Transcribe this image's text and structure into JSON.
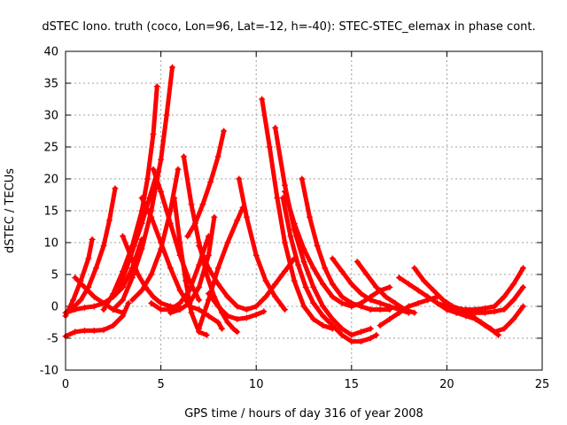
{
  "chart_data": {
    "type": "scatter",
    "title": "dSTEC Iono. truth (coco, Lon=96, Lat=-12, h=-40): STEC-STEC_elemax in phase cont.",
    "xlabel": "GPS time / hours of day 316 of year 2008",
    "ylabel": "dSTEC  / TECUs",
    "xlim": [
      0,
      25
    ],
    "ylim": [
      -10,
      40
    ],
    "xticks": [
      0,
      5,
      10,
      15,
      20,
      25
    ],
    "yticks": [
      -10,
      -5,
      0,
      5,
      10,
      15,
      20,
      25,
      30,
      35,
      40
    ],
    "grid": true,
    "marker": "+",
    "color": "#ff0000",
    "series": [
      {
        "x": [
          0,
          0.5,
          1.0,
          1.5,
          2.0,
          2.5,
          3.0,
          3.3
        ],
        "y": [
          -4.7,
          -4.0,
          -3.8,
          -3.8,
          -3.7,
          -3.0,
          -1.5,
          0.5
        ]
      },
      {
        "x": [
          0,
          0.4,
          0.8,
          1.2,
          1.4
        ],
        "y": [
          -1.5,
          1.0,
          4.0,
          7.5,
          10.5
        ]
      },
      {
        "x": [
          0.3,
          0.8,
          1.2,
          1.6,
          2.0,
          2.3,
          2.6
        ],
        "y": [
          -0.5,
          1.0,
          3.0,
          6.0,
          9.5,
          13.5,
          18.5
        ]
      },
      {
        "x": [
          0.5,
          1.0,
          1.5,
          2.0,
          2.5,
          3.0
        ],
        "y": [
          4.5,
          3.0,
          1.5,
          0.5,
          -0.5,
          -1.0
        ]
      },
      {
        "x": [
          0,
          0.5,
          1.0,
          1.5,
          2.0,
          2.5,
          3.0,
          3.5,
          4.0
        ],
        "y": [
          -1.0,
          -0.5,
          -0.2,
          0,
          0.5,
          1.5,
          3.0,
          6.0,
          10.5
        ]
      },
      {
        "x": [
          2.0,
          2.5,
          3.0,
          3.5,
          4.0,
          4.3,
          4.6,
          4.8
        ],
        "y": [
          -0.5,
          2.0,
          5.5,
          9.5,
          15.0,
          20.0,
          27.0,
          34.5
        ]
      },
      {
        "x": [
          2.5,
          3.0,
          3.5,
          4.0,
          4.5,
          5.0,
          5.3,
          5.6
        ],
        "y": [
          -0.5,
          1.0,
          4.5,
          9.0,
          15.0,
          23.0,
          30.0,
          37.5
        ]
      },
      {
        "x": [
          2.8,
          3.2,
          3.6,
          4.0,
          4.4,
          4.8
        ],
        "y": [
          3.0,
          6.0,
          9.5,
          13.0,
          17.0,
          21.0
        ]
      },
      {
        "x": [
          3.0,
          3.4,
          3.8,
          4.2,
          4.6,
          5.0,
          5.5,
          6.0
        ],
        "y": [
          11.0,
          8.0,
          5.0,
          3.0,
          1.5,
          0.5,
          0,
          -0.2
        ]
      },
      {
        "x": [
          4.6,
          5.0,
          5.5,
          6.0,
          6.5,
          7.0
        ],
        "y": [
          21.5,
          18.0,
          13.0,
          8.0,
          4.0,
          1.0
        ]
      },
      {
        "x": [
          4.0,
          4.5,
          5.0,
          5.5,
          6.0,
          6.5,
          7.0,
          7.5,
          8.0,
          8.2
        ],
        "y": [
          17.0,
          14.0,
          10.0,
          6.0,
          2.5,
          0,
          -0.5,
          -1.5,
          -2.5,
          -3.5
        ]
      },
      {
        "x": [
          3.5,
          4.0,
          4.5,
          5.0,
          5.5,
          5.9
        ],
        "y": [
          1.0,
          2.5,
          5.0,
          9.0,
          15.0,
          21.5
        ]
      },
      {
        "x": [
          4.5,
          5.0,
          5.5,
          6.0,
          6.5,
          7.0,
          7.5
        ],
        "y": [
          0.5,
          -0.5,
          -0.5,
          0.5,
          2.5,
          6.5,
          11.0
        ]
      },
      {
        "x": [
          5.5,
          6.0,
          6.5,
          7.0,
          7.5,
          7.8
        ],
        "y": [
          -1.0,
          -0.5,
          0.5,
          3.0,
          8.0,
          14.0
        ]
      },
      {
        "x": [
          6.4,
          6.8,
          7.2,
          7.6,
          8.0,
          8.3
        ],
        "y": [
          11.0,
          13.0,
          16.0,
          19.5,
          23.5,
          27.5
        ]
      },
      {
        "x": [
          6.2,
          6.6,
          7.0,
          7.4,
          7.8,
          8.2,
          8.5,
          8.8,
          9.0
        ],
        "y": [
          23.5,
          16.0,
          10.0,
          5.0,
          1.5,
          -1.0,
          -2.5,
          -3.5,
          -4.0
        ]
      },
      {
        "x": [
          5.7,
          6.0,
          6.3,
          6.6,
          7.0,
          7.4
        ],
        "y": [
          17.0,
          10.0,
          4.0,
          -1.0,
          -4.0,
          -4.5
        ]
      },
      {
        "x": [
          7.0,
          7.5,
          8.0,
          8.5,
          9.0,
          9.3
        ],
        "y": [
          -3.5,
          1.0,
          6.0,
          10.0,
          13.5,
          15.5
        ]
      },
      {
        "x": [
          7.5,
          8.0,
          8.5,
          9.0,
          9.5,
          10.0,
          10.4
        ],
        "y": [
          2.0,
          0,
          -1.5,
          -2.0,
          -1.8,
          -1.3,
          -0.8
        ]
      },
      {
        "x": [
          9.1,
          9.5,
          10.0,
          10.5,
          11.0,
          11.5
        ],
        "y": [
          20.0,
          14.0,
          8.0,
          4.0,
          1.5,
          -0.5
        ]
      },
      {
        "x": [
          7.0,
          7.5,
          8.0,
          8.5,
          9.0,
          9.5,
          10.0,
          10.5,
          11.0,
          11.5,
          12.0
        ],
        "y": [
          9.5,
          6.0,
          3.5,
          1.5,
          0.0,
          -0.5,
          0.0,
          1.5,
          3.5,
          5.5,
          7.5
        ]
      },
      {
        "x": [
          10.3,
          10.7,
          11.1,
          11.5,
          12.0,
          12.5,
          13.0,
          13.5,
          14.0
        ],
        "y": [
          32.5,
          25.0,
          17.0,
          10.0,
          4.0,
          0,
          -2.0,
          -3.0,
          -3.5
        ]
      },
      {
        "x": [
          11.0,
          11.5,
          12.0,
          12.5,
          13.0,
          13.5,
          14.0,
          14.5,
          15.0,
          15.5,
          16.0
        ],
        "y": [
          28.0,
          19.0,
          12.0,
          7.0,
          3.0,
          0,
          -2.0,
          -3.5,
          -4.5,
          -4.0,
          -3.5
        ]
      },
      {
        "x": [
          11.4,
          11.8,
          12.2,
          12.6,
          13.0,
          13.5,
          14.0,
          14.5,
          15.0,
          15.5,
          16.0,
          16.3
        ],
        "y": [
          17.0,
          11.0,
          6.5,
          3.0,
          0.5,
          -1.5,
          -3.0,
          -4.5,
          -5.5,
          -5.5,
          -5.0,
          -4.5
        ]
      },
      {
        "x": [
          12.4,
          12.8,
          13.2,
          13.6,
          14.0,
          14.5,
          15.0,
          15.5,
          16.0,
          16.5,
          17.0
        ],
        "y": [
          20.0,
          14.0,
          9.5,
          6.0,
          3.5,
          1.5,
          0.5,
          0,
          -0.5,
          -0.5,
          -0.5
        ]
      },
      {
        "x": [
          11.5,
          12.0,
          12.5,
          13.0,
          13.5,
          14.0,
          14.5,
          15.0,
          15.5,
          16.0,
          16.5,
          17.0
        ],
        "y": [
          18.0,
          13.0,
          9.0,
          6.0,
          3.5,
          1.5,
          0.5,
          0,
          0.5,
          1.5,
          2.5,
          3.0
        ]
      },
      {
        "x": [
          14.0,
          14.5,
          15.0,
          15.5,
          16.0,
          16.5,
          17.0,
          17.5,
          18.0
        ],
        "y": [
          7.5,
          5.5,
          3.5,
          2.0,
          1.0,
          0.5,
          0,
          -0.5,
          -1.0
        ]
      },
      {
        "x": [
          15.3,
          15.8,
          16.3,
          16.8,
          17.3,
          17.8,
          18.3
        ],
        "y": [
          7.0,
          5.0,
          3.0,
          1.5,
          0.5,
          -0.5,
          -1.0
        ]
      },
      {
        "x": [
          16.5,
          17.0,
          17.5,
          18.0,
          18.5,
          19.0,
          19.5
        ],
        "y": [
          -3.0,
          -2.0,
          -1.0,
          0,
          0.5,
          1.0,
          1.5
        ]
      },
      {
        "x": [
          17.5,
          18.0,
          18.5,
          19.0,
          19.5,
          20.0,
          20.5,
          21.0
        ],
        "y": [
          4.5,
          3.5,
          2.5,
          1.5,
          0.5,
          -0.5,
          -1.0,
          -1.5
        ]
      },
      {
        "x": [
          18.3,
          18.8,
          19.3,
          19.8,
          20.3,
          20.8,
          21.3,
          21.8,
          22.3,
          22.7
        ],
        "y": [
          6.0,
          4.0,
          2.5,
          1.0,
          0,
          -0.5,
          -1.5,
          -2.5,
          -3.5,
          -4.5
        ]
      },
      {
        "x": [
          19.5,
          20.0,
          20.5,
          21.0,
          21.5,
          22.0,
          22.5,
          23.0,
          23.5,
          24.0
        ],
        "y": [
          0.5,
          0,
          -0.5,
          -0.5,
          -0.5,
          -0.3,
          0,
          1.5,
          3.5,
          6.0
        ]
      },
      {
        "x": [
          20.0,
          20.5,
          21.0,
          21.5,
          22.0,
          22.5,
          23.0,
          23.5,
          24.0
        ],
        "y": [
          -0.5,
          -1.0,
          -1.0,
          -1.0,
          -1.0,
          -0.8,
          -0.5,
          1.0,
          3.0
        ]
      },
      {
        "x": [
          21.0,
          21.5,
          22.0,
          22.5,
          23.0,
          23.5,
          24.0
        ],
        "y": [
          -1.5,
          -2.0,
          -3.0,
          -4.0,
          -3.5,
          -2.0,
          0
        ]
      }
    ]
  }
}
